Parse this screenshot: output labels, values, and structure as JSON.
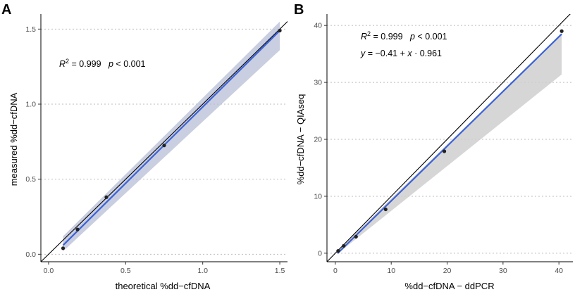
{
  "colors": {
    "fit_line": "#3b62d6",
    "band_a": "#b7bdd6",
    "band_b": "#cfcfcf",
    "points": "#222222",
    "identity_line": "#000000",
    "grid": "#bdbdbd"
  },
  "chart_data": [
    {
      "panel": "A",
      "type": "scatter",
      "xlabel": "theoretical %dd−cfDNA",
      "ylabel": "measured %dd−cfDNA",
      "xlim": [
        -0.05,
        1.55
      ],
      "ylim": [
        -0.05,
        1.6
      ],
      "xticks": [
        0.0,
        0.5,
        1.0,
        1.5
      ],
      "xtick_labels": [
        "0.0",
        "0.5",
        "1.0",
        "1.5"
      ],
      "yticks": [
        0.0,
        0.5,
        1.0,
        1.5
      ],
      "ytick_labels": [
        "0.0",
        "0.5",
        "1.0",
        "1.5"
      ],
      "grid": "horizontal dotted",
      "identity_line": true,
      "points": {
        "x": [
          0.094,
          0.188,
          0.375,
          0.75,
          1.5
        ],
        "y": [
          0.04,
          0.165,
          0.38,
          0.725,
          1.49
        ]
      },
      "fit": {
        "x": [
          0.094,
          1.5
        ],
        "y": [
          0.06,
          1.49
        ],
        "band_upper": [
          0.12,
          1.55
        ],
        "band_lower": [
          0.02,
          1.36
        ]
      },
      "annotation": {
        "r2_symbol": "R",
        "r2_power": "2",
        "r2_text": " = 0.999   ",
        "p_symbol": "p",
        "p_text": " < 0.001",
        "position": "upper-left"
      }
    },
    {
      "panel": "B",
      "type": "scatter",
      "xlabel": "%dd−cfDNA − ddPCR",
      "ylabel": "%dd−cfDNA − QIAseq",
      "xlim": [
        -1.5,
        42.5
      ],
      "ylim": [
        -1.5,
        42
      ],
      "xticks": [
        0,
        10,
        20,
        30,
        40
      ],
      "xtick_labels": [
        "0",
        "10",
        "20",
        "30",
        "40"
      ],
      "yticks": [
        0,
        10,
        20,
        30,
        40
      ],
      "ytick_labels": [
        "0",
        "10",
        "20",
        "30",
        "40"
      ],
      "grid": "horizontal dotted",
      "identity_line": true,
      "points": {
        "x": [
          0.5,
          1.5,
          3.7,
          9.0,
          19.5,
          40.5
        ],
        "y": [
          0.4,
          1.3,
          2.9,
          7.7,
          17.9,
          39.0
        ]
      },
      "fit": {
        "x": [
          0.4,
          40.5
        ],
        "y": [
          -0.03,
          38.5
        ],
        "band_upper": [
          0.5,
          38.5
        ],
        "band_lower": [
          -0.1,
          31.4
        ]
      },
      "annotation": {
        "r2_symbol": "R",
        "r2_power": "2",
        "r2_text": " = 0.999   ",
        "p_symbol": "p",
        "p_text": " < 0.001",
        "eq_y": "y",
        "eq_mid": " = −0.41 + ",
        "eq_x": "x",
        "eq_tail": " · 0.961",
        "position": "upper-left"
      }
    }
  ]
}
